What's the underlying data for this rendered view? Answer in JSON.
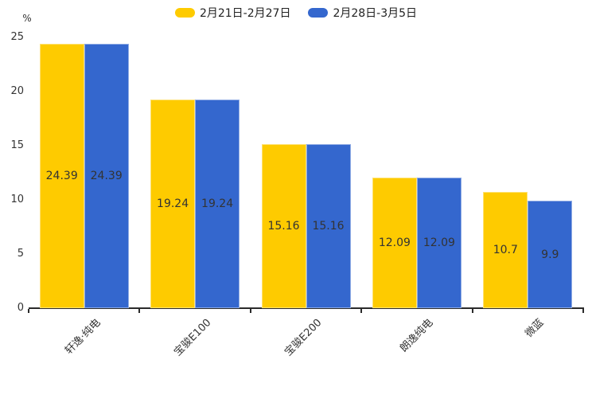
{
  "chart_data": {
    "type": "bar",
    "title": "",
    "unit_label": "%",
    "categories": [
      "轩逸·纯电",
      "宝骏E100",
      "宝骏E200",
      "朗逸纯电",
      "微蓝"
    ],
    "series": [
      {
        "name": "2月21日-2月27日",
        "color": "#FECB00",
        "values": [
          24.39,
          19.24,
          15.16,
          12.09,
          10.7
        ]
      },
      {
        "name": "2月28日-3月5日",
        "color": "#3467CE",
        "values": [
          24.39,
          19.24,
          15.16,
          12.09,
          9.9
        ]
      }
    ],
    "ylim": [
      0,
      25
    ],
    "yticks": [
      0,
      5,
      10,
      15,
      20,
      25
    ],
    "grid": false,
    "legend_position": "top-center",
    "value_labels": "inside-center",
    "xtick_rotation_deg": 45
  },
  "colors": {
    "background": "#ffffff",
    "axis_line": "#2b2b2b",
    "text": "#333333",
    "bar_value_text": "#333333"
  }
}
